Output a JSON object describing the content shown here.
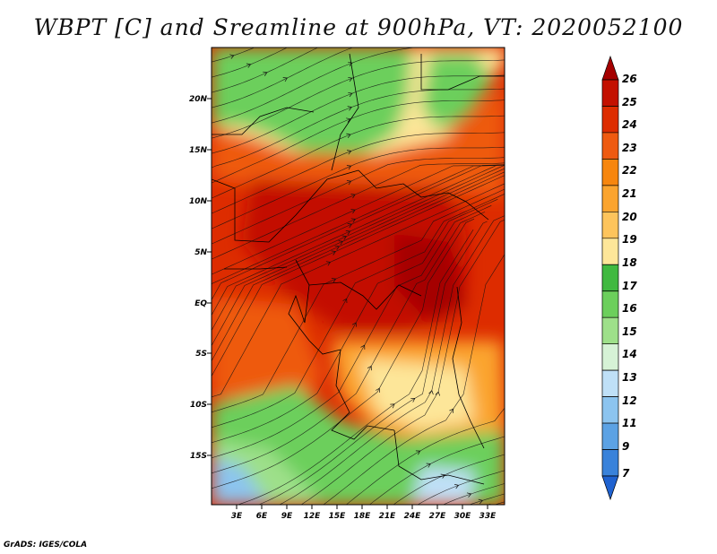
{
  "title": "WBPT [C] and Sreamline at 900hPa, VT: 2020052100",
  "footer": "GrADS: IGES/COLA",
  "map": {
    "lon_labels": [
      "3E",
      "6E",
      "9E",
      "12E",
      "15E",
      "18E",
      "21E",
      "24E",
      "27E",
      "30E",
      "33E"
    ],
    "lat_labels": [
      "20N",
      "15N",
      "10N",
      "5N",
      "EQ",
      "5S",
      "10S",
      "15S"
    ],
    "lon_range": [
      0,
      35
    ],
    "lat_range": [
      -20.5,
      25.5
    ]
  },
  "colorbar": {
    "labels": [
      "26",
      "25",
      "24",
      "23",
      "22",
      "21",
      "20",
      "19",
      "18",
      "17",
      "16",
      "15",
      "14",
      "13",
      "12",
      "11",
      "9",
      "7"
    ],
    "colors": [
      "#a50000",
      "#c31000",
      "#dd2c00",
      "#ee5a10",
      "#f7860e",
      "#fba42e",
      "#fdc45c",
      "#fde699",
      "#40b940",
      "#6ccf5c",
      "#9ee08a",
      "#d6f2d6",
      "#bfe0f7",
      "#8cc4ef",
      "#5ca2e4",
      "#3982da",
      "#1f62d0"
    ]
  }
}
